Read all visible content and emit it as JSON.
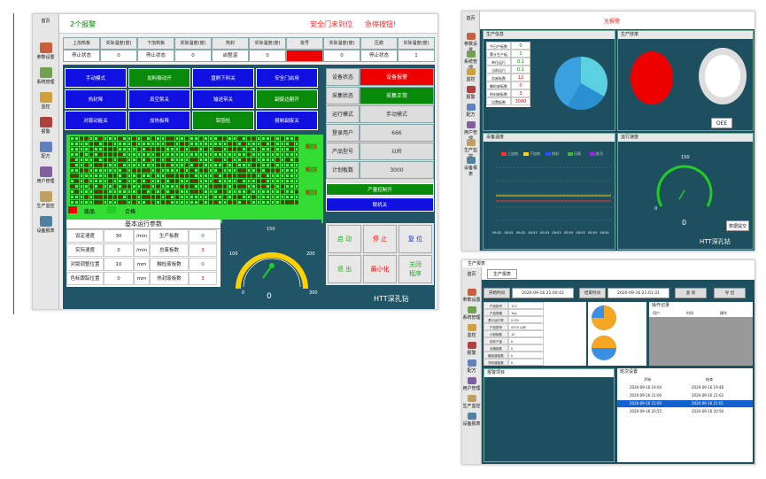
{
  "window1": {
    "alarm_title": "2个报警",
    "alarm_msg": "安全门未到位",
    "alarm_msg2": "急停按钮!",
    "sidebar": [
      "首页",
      "参数设置",
      "系统管理",
      "监控",
      "报警",
      "配方",
      "用户管理",
      "生产监控",
      "设备报表"
    ],
    "temps": {
      "headers": [
        "上加热板",
        "实际温度(度)",
        "下加热板",
        "实际温度(度)",
        "热封",
        "实际温度(度)",
        "批号",
        "实际温度(度)",
        "压痕",
        "实际温度(度)"
      ],
      "values": [
        "停止状态",
        "0",
        "停止状态",
        "0",
        "启整温",
        "0",
        "",
        "0",
        "停止状态",
        "1"
      ]
    },
    "buttons": [
      [
        "手动模式",
        "加料振动开",
        "盘刷下料关",
        "安全门启用"
      ],
      [
        "热封降",
        "真空泵关",
        "输送带关",
        "副废边剔开"
      ],
      [
        "对版动能关",
        "加热板降",
        "铝箔检",
        "报制副废关"
      ]
    ],
    "grid_labels": [
      "裁刀1",
      "裁刀2",
      "裁刀3"
    ],
    "legend": {
      "bad": "废品",
      "good": "合格"
    },
    "status": {
      "rows": [
        {
          "k": "设备状态",
          "v": "设备报警"
        },
        {
          "k": "采集状态",
          "v": "采集正常"
        },
        {
          "k": "运行模式",
          "v": "手动模式"
        },
        {
          "k": "登录用户",
          "v": "666"
        },
        {
          "k": "产品型号",
          "v": "以岭"
        },
        {
          "k": "计划板数",
          "v": "3000"
        }
      ],
      "btn1": "产量控制开",
      "btn2": "联机关"
    },
    "params": {
      "title": "基本运行参数",
      "rows": [
        [
          "设定速度",
          "30",
          "/min",
          "生产板数",
          "0"
        ],
        [
          "实际速度",
          "0",
          "/min",
          "总废板数",
          "3"
        ],
        [
          "对版调整位置",
          "10",
          "mm",
          "触检废板数",
          "0"
        ],
        [
          "色标跟踪位置",
          "0",
          "mm",
          "热封废板数",
          "3"
        ]
      ]
    },
    "gauge": {
      "value": "0",
      "ticks": [
        "0",
        "50",
        "100",
        "150",
        "200",
        "250",
        "300"
      ]
    },
    "controls": [
      "启 动",
      "停 止",
      "复 位",
      "退 出",
      "最小化",
      "关闭\n程序"
    ],
    "watermark": "HTT深孔钻"
  },
  "window2": {
    "alarm": "无报警",
    "prod_info_title": "生产信息",
    "prod_rows": [
      [
        "今日产板数",
        "0"
      ],
      [
        "累计生产板",
        "1"
      ],
      [
        "单位运行",
        "0.1"
      ],
      [
        "当前运行",
        "0.1"
      ],
      [
        "总废板数",
        "12"
      ],
      [
        "触检废板数",
        "0"
      ],
      [
        "热封废板数",
        "3"
      ],
      [
        "设置板数",
        "3000"
      ]
    ],
    "eff_title": "生产效率",
    "oee_btn": "OEE",
    "temp_title": "设备温度",
    "temp_legend": [
      "上加热",
      "下加热",
      "热封",
      "压痕",
      "批号"
    ],
    "temp_times": [
      "09:52",
      "09:52",
      "09:52",
      "09:53",
      "09:53",
      "09:53",
      "09:53",
      "09:53",
      "09:53",
      "09:54"
    ],
    "speed_title": "运行速度",
    "speed_value": "0",
    "speed_btn": "数据提交",
    "watermark": "HTT深孔钻",
    "colors": {
      "t1": "#ff3030",
      "t2": "#ffd400",
      "t3": "#2050ff",
      "t4": "#30c030",
      "t5": "#a020f0"
    }
  },
  "window3": {
    "title": "生产报表",
    "tab": "生产报表",
    "start_label": "开始时间",
    "start_val": "2020-09-16 21:00:42",
    "end_label": "结束时间",
    "end_val": "2020-09-16 21:01:31",
    "query": "查 询",
    "export": "导 出",
    "info_rows": [
      [
        "产品批号",
        "123"
      ],
      [
        "产品规格",
        "1kg"
      ],
      [
        "累计运行率",
        "0.0%"
      ],
      [
        "产品型号",
        "0079 以岭"
      ],
      [
        "计划板数",
        "10"
      ],
      [
        "实际产量",
        "0"
      ],
      [
        "合格板数",
        "0"
      ],
      [
        "触检废板数",
        "0"
      ],
      [
        "热封废板数",
        "0"
      ]
    ],
    "users_title": "操作记录",
    "users_headers": [
      "用户",
      "时间",
      "操作"
    ],
    "alarm_title": "报警项目",
    "shift_title": "班次设置",
    "shift_headers": [
      "开始",
      "结束"
    ],
    "shifts": [
      [
        "2020-09-16 19:04",
        "2020-09-16 19:48"
      ],
      [
        "2020-09-16 21:00",
        "2020-09-16 21:02"
      ],
      [
        "2020-09-16 21:00",
        "2020-09-16 21:01"
      ],
      [
        "2020-09-16 20:55",
        "2020-09-16 20:56"
      ]
    ],
    "watermark": "HTT深孔钻"
  }
}
